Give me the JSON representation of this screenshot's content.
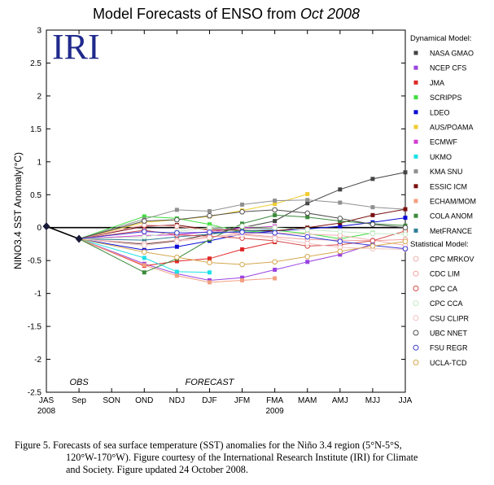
{
  "chart_data": {
    "type": "line",
    "title_prefix": "Model Forecasts of ENSO from ",
    "title_italic": "Oct 2008",
    "logo": "IRI",
    "ylabel": "NINO3.4 SST Anomaly(°C)",
    "ylim": [
      -2.5,
      3
    ],
    "yticks": [
      -2.5,
      -2,
      -1.5,
      -1,
      -0.5,
      0,
      0.5,
      1,
      1.5,
      2,
      2.5,
      3
    ],
    "categories": [
      "JAS",
      "Sep",
      "SON",
      "OND",
      "NDJ",
      "DJF",
      "JFM",
      "FMA",
      "MAM",
      "AMJ",
      "MJJ",
      "JJA"
    ],
    "year_labels": [
      {
        "category": "JAS",
        "text": "2008"
      },
      {
        "category": "FMA",
        "text": "2009"
      }
    ],
    "annotations": [
      {
        "category": "Sep",
        "text": "OBS"
      },
      {
        "category": "DJF",
        "text": "FORECAST"
      }
    ],
    "observed": {
      "categories": [
        "JAS",
        "Sep"
      ],
      "values": [
        0.02,
        -0.17
      ]
    },
    "legend": {
      "dynamical_header": "Dynamical Model:",
      "statistical_header": "Statistical Model:",
      "placement": "right"
    },
    "series": [
      {
        "name": "NASA GMAO",
        "group": "dynamical",
        "color": "#444444",
        "marker": "square",
        "values": [
          null,
          -0.17,
          null,
          -0.25,
          -0.2,
          -0.1,
          0.0,
          0.1,
          0.37,
          0.58,
          0.74,
          0.84
        ]
      },
      {
        "name": "NCEP CFS",
        "group": "dynamical",
        "color": "#9a44e0",
        "marker": "square",
        "values": [
          null,
          -0.17,
          null,
          -0.55,
          -0.7,
          -0.8,
          -0.76,
          -0.64,
          -0.52,
          -0.41,
          -0.25,
          null
        ]
      },
      {
        "name": "JMA",
        "group": "dynamical",
        "color": "#e02828",
        "marker": "square",
        "values": [
          null,
          -0.17,
          null,
          -0.58,
          -0.51,
          -0.47,
          -0.33,
          -0.22,
          null,
          null,
          null,
          null
        ]
      },
      {
        "name": "SCRIPPS",
        "group": "dynamical",
        "color": "#3ede3e",
        "marker": "square",
        "values": [
          null,
          -0.17,
          null,
          0.17,
          0.14,
          0.05,
          -0.07,
          -0.04,
          -0.09,
          -0.17,
          -0.08,
          null
        ]
      },
      {
        "name": "LDEO",
        "group": "dynamical",
        "color": "#0a0ad6",
        "marker": "square",
        "values": [
          null,
          -0.17,
          null,
          -0.34,
          -0.29,
          -0.2,
          -0.1,
          -0.05,
          -0.02,
          0.02,
          0.08,
          0.15
        ]
      },
      {
        "name": "AUS/POAMA",
        "group": "dynamical",
        "color": "#f0cc30",
        "marker": "square",
        "values": [
          null,
          -0.17,
          null,
          0.08,
          0.12,
          0.17,
          0.26,
          0.36,
          0.51,
          null,
          null,
          null
        ]
      },
      {
        "name": "ECMWF",
        "group": "dynamical",
        "color": "#d33cd3",
        "marker": "square",
        "values": [
          null,
          -0.17,
          null,
          -0.12,
          -0.11,
          -0.06,
          0.0,
          0.02,
          null,
          null,
          null,
          null
        ]
      },
      {
        "name": "UKMO",
        "group": "dynamical",
        "color": "#1ee0e8",
        "marker": "square",
        "values": [
          null,
          -0.17,
          null,
          -0.46,
          -0.67,
          -0.68,
          null,
          null,
          null,
          null,
          null,
          null
        ]
      },
      {
        "name": "KMA SNU",
        "group": "dynamical",
        "color": "#909090",
        "marker": "square",
        "values": [
          null,
          -0.17,
          null,
          0.13,
          0.27,
          0.25,
          0.35,
          0.41,
          0.42,
          0.38,
          0.31,
          0.28
        ]
      },
      {
        "name": "ESSIC ICM",
        "group": "dynamical",
        "color": "#7a1010",
        "marker": "square",
        "values": [
          null,
          -0.17,
          null,
          0.02,
          0.04,
          -0.03,
          -0.04,
          -0.05,
          0.0,
          0.07,
          0.19,
          0.28
        ]
      },
      {
        "name": "ECHAM/MOM",
        "group": "dynamical",
        "color": "#f2a080",
        "marker": "square",
        "values": [
          null,
          -0.17,
          null,
          -0.57,
          -0.73,
          -0.83,
          -0.8,
          -0.77,
          null,
          null,
          null,
          null
        ]
      },
      {
        "name": "COLA ANOM",
        "group": "dynamical",
        "color": "#3c8a3c",
        "marker": "square",
        "values": [
          null,
          -0.17,
          null,
          -0.68,
          -0.47,
          -0.18,
          0.06,
          0.19,
          0.16,
          0.1,
          0.06,
          0.03
        ]
      },
      {
        "name": "MetFRANCE",
        "group": "dynamical",
        "color": "#2f7f98",
        "marker": "square",
        "values": [
          null,
          -0.17,
          null,
          -0.19,
          -0.14,
          -0.1,
          -0.05,
          -0.03,
          null,
          null,
          null,
          null
        ]
      },
      {
        "name": "CPC MRKOV",
        "group": "statistical",
        "color": "#f0b0b0",
        "marker": "circle",
        "values": [
          null,
          -0.17,
          null,
          -0.24,
          -0.19,
          -0.14,
          -0.09,
          -0.08,
          -0.1,
          -0.12,
          -0.19,
          -0.27
        ]
      },
      {
        "name": "CDC LIM",
        "group": "statistical",
        "color": "#f2a0a0",
        "marker": "circle",
        "values": [
          null,
          -0.17,
          null,
          0.04,
          0.02,
          -0.04,
          -0.1,
          -0.14,
          -0.18,
          -0.19,
          -0.2,
          -0.18
        ]
      },
      {
        "name": "CPC CA",
        "group": "statistical",
        "color": "#d44a4a",
        "marker": "circle",
        "values": [
          null,
          -0.17,
          null,
          -0.04,
          -0.11,
          -0.13,
          -0.16,
          -0.2,
          -0.28,
          -0.26,
          -0.2,
          -0.05
        ]
      },
      {
        "name": "CPC CCA",
        "group": "statistical",
        "color": "#c4e8c4",
        "marker": "circle",
        "values": [
          null,
          -0.17,
          null,
          -0.14,
          -0.06,
          0.0,
          0.02,
          0.0,
          -0.03,
          -0.06,
          -0.09,
          -0.1
        ]
      },
      {
        "name": "CSU CLIPR",
        "group": "statistical",
        "color": "#f2c2c2",
        "marker": "circle",
        "values": [
          null,
          -0.17,
          null,
          -0.27,
          -0.21,
          -0.15,
          -0.11,
          -0.16,
          -0.24,
          -0.3,
          -0.32,
          -0.33
        ]
      },
      {
        "name": "UBC NNET",
        "group": "statistical",
        "color": "#505050",
        "marker": "circle",
        "values": [
          null,
          -0.17,
          null,
          0.1,
          0.12,
          0.18,
          0.24,
          0.27,
          0.22,
          0.14,
          0.05,
          0.0
        ]
      },
      {
        "name": "FSU REGR",
        "group": "statistical",
        "color": "#3a3ad6",
        "marker": "circle",
        "values": [
          null,
          -0.17,
          null,
          -0.06,
          -0.08,
          -0.07,
          -0.07,
          -0.08,
          -0.14,
          -0.21,
          -0.27,
          -0.32
        ]
      },
      {
        "name": "UCLA-TCD",
        "group": "statistical",
        "color": "#d4a850",
        "marker": "circle",
        "values": [
          null,
          -0.17,
          null,
          -0.37,
          -0.45,
          -0.53,
          -0.56,
          -0.52,
          -0.44,
          -0.36,
          -0.28,
          -0.21
        ]
      }
    ]
  },
  "caption": {
    "line1": "Figure 5. Forecasts of sea surface temperature (SST) anomalies for the Niño 3.4 region (5°N-5°S,",
    "line2": "120°W-170°W).  Figure courtesy of the International Research Institute (IRI) for Climate",
    "line3": "and Society.  Figure updated 24 October 2008."
  }
}
